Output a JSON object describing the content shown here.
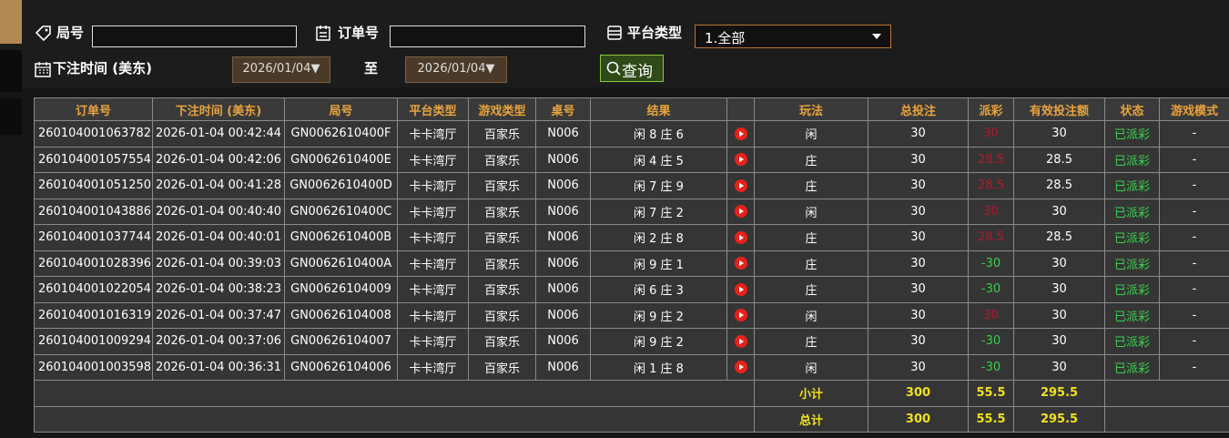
{
  "filters": {
    "round_label": "局号",
    "order_label": "订单号",
    "platform_label": "平台类型",
    "platform_value": "1.全部",
    "time_label": "下注时间 (美东)",
    "date_from": "2026/01/04▼",
    "to_label": "至",
    "date_to": "2026/01/04▼",
    "search_button": "查询"
  },
  "table": {
    "columns": [
      "订单号",
      "下注时间 (美东)",
      "局号",
      "平台类型",
      "游戏类型",
      "桌号",
      "结果",
      "玩法",
      "总投注",
      "派彩",
      "有效投注额",
      "状态",
      "游戏模式"
    ],
    "rows": [
      [
        "260104001063782",
        "2026-01-04 00:42:44",
        "GN0062610400F",
        "卡卡湾厅",
        "百家乐",
        "N006",
        "闲 8 庄 6",
        "闲",
        "30",
        "30",
        "30",
        "已派彩",
        "-"
      ],
      [
        "260104001057554",
        "2026-01-04 00:42:06",
        "GN0062610400E",
        "卡卡湾厅",
        "百家乐",
        "N006",
        "闲 4 庄 5",
        "庄",
        "30",
        "28.5",
        "28.5",
        "已派彩",
        "-"
      ],
      [
        "260104001051250",
        "2026-01-04 00:41:28",
        "GN0062610400D",
        "卡卡湾厅",
        "百家乐",
        "N006",
        "闲 7 庄 9",
        "庄",
        "30",
        "28.5",
        "28.5",
        "已派彩",
        "-"
      ],
      [
        "260104001043886",
        "2026-01-04 00:40:40",
        "GN0062610400C",
        "卡卡湾厅",
        "百家乐",
        "N006",
        "闲 7 庄 2",
        "闲",
        "30",
        "30",
        "30",
        "已派彩",
        "-"
      ],
      [
        "260104001037744",
        "2026-01-04 00:40:01",
        "GN0062610400B",
        "卡卡湾厅",
        "百家乐",
        "N006",
        "闲 2 庄 8",
        "庄",
        "30",
        "28.5",
        "28.5",
        "已派彩",
        "-"
      ],
      [
        "260104001028396",
        "2026-01-04 00:39:03",
        "GN0062610400A",
        "卡卡湾厅",
        "百家乐",
        "N006",
        "闲 9 庄 1",
        "庄",
        "30",
        "-30",
        "30",
        "已派彩",
        "-"
      ],
      [
        "260104001022054",
        "2026-01-04 00:38:23",
        "GN00626104009",
        "卡卡湾厅",
        "百家乐",
        "N006",
        "闲 6 庄 3",
        "庄",
        "30",
        "-30",
        "30",
        "已派彩",
        "-"
      ],
      [
        "260104001016319",
        "2026-01-04 00:37:47",
        "GN00626104008",
        "卡卡湾厅",
        "百家乐",
        "N006",
        "闲 9 庄 2",
        "闲",
        "30",
        "30",
        "30",
        "已派彩",
        "-"
      ],
      [
        "260104001009294",
        "2026-01-04 00:37:06",
        "GN00626104007",
        "卡卡湾厅",
        "百家乐",
        "N006",
        "闲 9 庄 2",
        "庄",
        "30",
        "-30",
        "30",
        "已派彩",
        "-"
      ],
      [
        "260104001003598",
        "2026-01-04 00:36:31",
        "GN00626104006",
        "卡卡湾厅",
        "百家乐",
        "N006",
        "闲 1 庄 8",
        "闲",
        "30",
        "-30",
        "30",
        "已派彩",
        "-"
      ]
    ],
    "summary": [
      {
        "label": "小计",
        "total_bet": "300",
        "payout": "55.5",
        "valid_bet": "295.5"
      },
      {
        "label": "总计",
        "total_bet": "300",
        "payout": "55.5",
        "valid_bet": "295.5"
      }
    ]
  }
}
